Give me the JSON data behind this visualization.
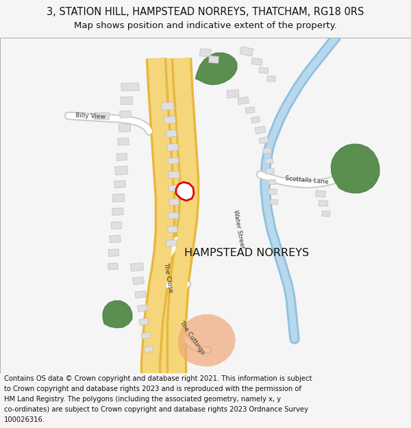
{
  "title_line1": "3, STATION HILL, HAMPSTEAD NORREYS, THATCHAM, RG18 0RS",
  "title_line2": "Map shows position and indicative extent of the property.",
  "footer_lines": [
    "Contains OS data © Crown copyright and database right 2021. This information is subject",
    "to Crown copyright and database rights 2023 and is reproduced with the permission of",
    "HM Land Registry. The polygons (including the associated geometry, namely x, y",
    "co-ordinates) are subject to Crown copyright and database rights 2023 Ordnance Survey",
    "100026316."
  ],
  "bg_color": "#f5f5f5",
  "map_bg": "#ffffff",
  "road_yellow": "#f5d67a",
  "road_yellow_border": "#e8b840",
  "building_fill": "#e0dede",
  "building_stroke": "#c0bebe",
  "green_fill": "#5a8f50",
  "green_stroke": "#3a6f3a",
  "water_color": "#90c0de",
  "highlight_fill": "#f0a878",
  "red_outline": "#dd0000",
  "label_color": "#333333",
  "hampstead_color": "#111111",
  "title_fontsize": 10.5,
  "subtitle_fontsize": 9.5,
  "footer_fontsize": 7.2,
  "label_fontsize": 6.5,
  "hampstead_fontsize": 11.5
}
